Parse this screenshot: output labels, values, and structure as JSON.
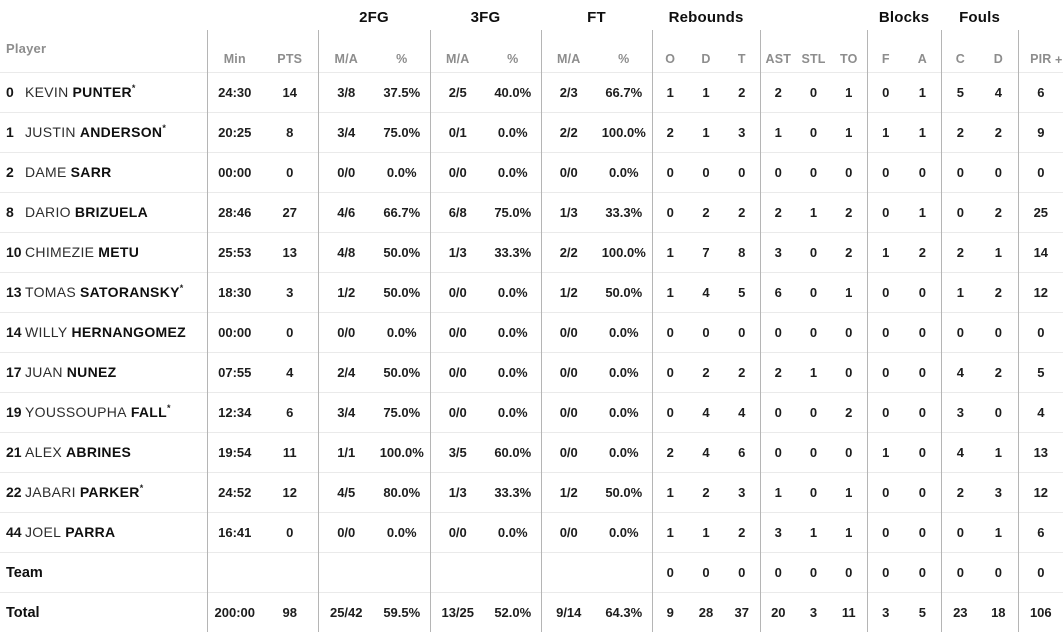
{
  "table": {
    "header": {
      "groups": {
        "fg2": "2FG",
        "fg3": "3FG",
        "ft": "FT",
        "rebounds": "Rebounds",
        "blocks": "Blocks",
        "fouls": "Fouls"
      },
      "sub": {
        "player": "Player",
        "min": "Min",
        "pts": "PTS",
        "ma": "M/A",
        "pct": "%",
        "o": "O",
        "d": "D",
        "t": "T",
        "ast": "AST",
        "stl": "STL",
        "to": "TO",
        "f": "F",
        "a": "A",
        "c": "C",
        "d2": "D",
        "pir": "PIR",
        "plus_partial": "+"
      }
    },
    "starter_mark": "*",
    "rows": [
      {
        "type": "player",
        "number": "0",
        "first": "KEVIN",
        "last": "PUNTER",
        "starter": true,
        "min": "24:30",
        "pts": "14",
        "fg2": "3/8",
        "fg2p": "37.5%",
        "fg3": "2/5",
        "fg3p": "40.0%",
        "ft": "2/3",
        "ftp": "66.7%",
        "o": "1",
        "d": "1",
        "t": "2",
        "ast": "2",
        "stl": "0",
        "to": "1",
        "bf": "0",
        "ba": "1",
        "fc": "5",
        "fd": "4",
        "pir": "6"
      },
      {
        "type": "player",
        "number": "1",
        "first": "JUSTIN",
        "last": "ANDERSON",
        "starter": true,
        "min": "20:25",
        "pts": "8",
        "fg2": "3/4",
        "fg2p": "75.0%",
        "fg3": "0/1",
        "fg3p": "0.0%",
        "ft": "2/2",
        "ftp": "100.0%",
        "o": "2",
        "d": "1",
        "t": "3",
        "ast": "1",
        "stl": "0",
        "to": "1",
        "bf": "1",
        "ba": "1",
        "fc": "2",
        "fd": "2",
        "pir": "9"
      },
      {
        "type": "player",
        "number": "2",
        "first": "DAME",
        "last": "SARR",
        "starter": false,
        "min": "00:00",
        "pts": "0",
        "fg2": "0/0",
        "fg2p": "0.0%",
        "fg3": "0/0",
        "fg3p": "0.0%",
        "ft": "0/0",
        "ftp": "0.0%",
        "o": "0",
        "d": "0",
        "t": "0",
        "ast": "0",
        "stl": "0",
        "to": "0",
        "bf": "0",
        "ba": "0",
        "fc": "0",
        "fd": "0",
        "pir": "0"
      },
      {
        "type": "player",
        "number": "8",
        "first": "DARIO",
        "last": "BRIZUELA",
        "starter": false,
        "min": "28:46",
        "pts": "27",
        "fg2": "4/6",
        "fg2p": "66.7%",
        "fg3": "6/8",
        "fg3p": "75.0%",
        "ft": "1/3",
        "ftp": "33.3%",
        "o": "0",
        "d": "2",
        "t": "2",
        "ast": "2",
        "stl": "1",
        "to": "2",
        "bf": "0",
        "ba": "1",
        "fc": "0",
        "fd": "2",
        "pir": "25"
      },
      {
        "type": "player",
        "number": "10",
        "first": "CHIMEZIE",
        "last": "METU",
        "starter": false,
        "min": "25:53",
        "pts": "13",
        "fg2": "4/8",
        "fg2p": "50.0%",
        "fg3": "1/3",
        "fg3p": "33.3%",
        "ft": "2/2",
        "ftp": "100.0%",
        "o": "1",
        "d": "7",
        "t": "8",
        "ast": "3",
        "stl": "0",
        "to": "2",
        "bf": "1",
        "ba": "2",
        "fc": "2",
        "fd": "1",
        "pir": "14"
      },
      {
        "type": "player",
        "number": "13",
        "first": "TOMAS",
        "last": "SATORANSKY",
        "starter": true,
        "min": "18:30",
        "pts": "3",
        "fg2": "1/2",
        "fg2p": "50.0%",
        "fg3": "0/0",
        "fg3p": "0.0%",
        "ft": "1/2",
        "ftp": "50.0%",
        "o": "1",
        "d": "4",
        "t": "5",
        "ast": "6",
        "stl": "0",
        "to": "1",
        "bf": "0",
        "ba": "0",
        "fc": "1",
        "fd": "2",
        "pir": "12"
      },
      {
        "type": "player",
        "number": "14",
        "first": "WILLY",
        "last": "HERNANGOMEZ",
        "starter": false,
        "min": "00:00",
        "pts": "0",
        "fg2": "0/0",
        "fg2p": "0.0%",
        "fg3": "0/0",
        "fg3p": "0.0%",
        "ft": "0/0",
        "ftp": "0.0%",
        "o": "0",
        "d": "0",
        "t": "0",
        "ast": "0",
        "stl": "0",
        "to": "0",
        "bf": "0",
        "ba": "0",
        "fc": "0",
        "fd": "0",
        "pir": "0"
      },
      {
        "type": "player",
        "number": "17",
        "first": "JUAN",
        "last": "NUNEZ",
        "starter": false,
        "min": "07:55",
        "pts": "4",
        "fg2": "2/4",
        "fg2p": "50.0%",
        "fg3": "0/0",
        "fg3p": "0.0%",
        "ft": "0/0",
        "ftp": "0.0%",
        "o": "0",
        "d": "2",
        "t": "2",
        "ast": "2",
        "stl": "1",
        "to": "0",
        "bf": "0",
        "ba": "0",
        "fc": "4",
        "fd": "2",
        "pir": "5"
      },
      {
        "type": "player",
        "number": "19",
        "first": "YOUSSOUPHA",
        "last": "FALL",
        "starter": true,
        "min": "12:34",
        "pts": "6",
        "fg2": "3/4",
        "fg2p": "75.0%",
        "fg3": "0/0",
        "fg3p": "0.0%",
        "ft": "0/0",
        "ftp": "0.0%",
        "o": "0",
        "d": "4",
        "t": "4",
        "ast": "0",
        "stl": "0",
        "to": "2",
        "bf": "0",
        "ba": "0",
        "fc": "3",
        "fd": "0",
        "pir": "4"
      },
      {
        "type": "player",
        "number": "21",
        "first": "ALEX",
        "last": "ABRINES",
        "starter": false,
        "min": "19:54",
        "pts": "11",
        "fg2": "1/1",
        "fg2p": "100.0%",
        "fg3": "3/5",
        "fg3p": "60.0%",
        "ft": "0/0",
        "ftp": "0.0%",
        "o": "2",
        "d": "4",
        "t": "6",
        "ast": "0",
        "stl": "0",
        "to": "0",
        "bf": "1",
        "ba": "0",
        "fc": "4",
        "fd": "1",
        "pir": "13"
      },
      {
        "type": "player",
        "number": "22",
        "first": "JABARI",
        "last": "PARKER",
        "starter": true,
        "min": "24:52",
        "pts": "12",
        "fg2": "4/5",
        "fg2p": "80.0%",
        "fg3": "1/3",
        "fg3p": "33.3%",
        "ft": "1/2",
        "ftp": "50.0%",
        "o": "1",
        "d": "2",
        "t": "3",
        "ast": "1",
        "stl": "0",
        "to": "1",
        "bf": "0",
        "ba": "0",
        "fc": "2",
        "fd": "3",
        "pir": "12"
      },
      {
        "type": "player",
        "number": "44",
        "first": "JOEL",
        "last": "PARRA",
        "starter": false,
        "min": "16:41",
        "pts": "0",
        "fg2": "0/0",
        "fg2p": "0.0%",
        "fg3": "0/0",
        "fg3p": "0.0%",
        "ft": "0/0",
        "ftp": "0.0%",
        "o": "1",
        "d": "1",
        "t": "2",
        "ast": "3",
        "stl": "1",
        "to": "1",
        "bf": "0",
        "ba": "0",
        "fc": "0",
        "fd": "1",
        "pir": "6"
      },
      {
        "type": "team",
        "label": "Team",
        "min": "",
        "pts": "",
        "fg2": "",
        "fg2p": "",
        "fg3": "",
        "fg3p": "",
        "ft": "",
        "ftp": "",
        "o": "0",
        "d": "0",
        "t": "0",
        "ast": "0",
        "stl": "0",
        "to": "0",
        "bf": "0",
        "ba": "0",
        "fc": "0",
        "fd": "0",
        "pir": "0"
      },
      {
        "type": "total",
        "label": "Total",
        "min": "200:00",
        "pts": "98",
        "fg2": "25/42",
        "fg2p": "59.5%",
        "fg3": "13/25",
        "fg3p": "52.0%",
        "ft": "9/14",
        "ftp": "64.3%",
        "o": "9",
        "d": "28",
        "t": "37",
        "ast": "20",
        "stl": "3",
        "to": "11",
        "bf": "3",
        "ba": "5",
        "fc": "23",
        "fd": "18",
        "pir": "106"
      }
    ]
  },
  "colors": {
    "header_text": "#0f0f0f",
    "subheader_text": "#8d8d8d",
    "data_text": "#1d1d1d",
    "row_separator": "#eaeaea",
    "group_separator": "#b5b5b5",
    "background": "#ffffff"
  }
}
